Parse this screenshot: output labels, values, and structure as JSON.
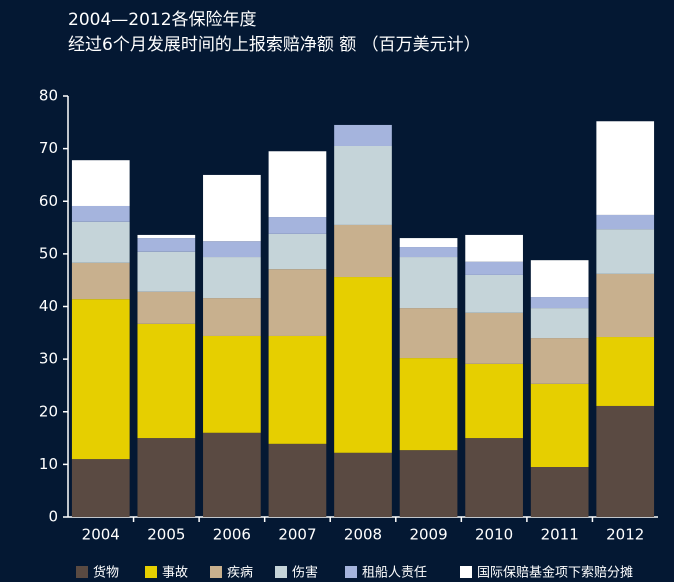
{
  "chart_data": {
    "type": "stacked_bar",
    "title": "2004—2012各保险年度",
    "subtitle": "经过6个月发展时间的上报索赔净额 额 （百万美元计）",
    "categories": [
      "2004",
      "2005",
      "2006",
      "2007",
      "2008",
      "2009",
      "2010",
      "2011",
      "2012"
    ],
    "series": [
      {
        "name": "货物",
        "color": "#5a4a42",
        "values": [
          11,
          15,
          16,
          13.9,
          12.2,
          12.7,
          15,
          9.5,
          21.1
        ]
      },
      {
        "name": "事故",
        "color": "#e6cf00",
        "values": [
          30.4,
          21.7,
          18.4,
          20.5,
          33.4,
          17.5,
          14.1,
          15.8,
          13.1
        ]
      },
      {
        "name": "疾病",
        "color": "#c8b08e",
        "values": [
          6.9,
          6.1,
          7.2,
          12.7,
          9.9,
          9.5,
          9.7,
          8.7,
          12
        ]
      },
      {
        "name": "伤害",
        "color": "#c5d4d9",
        "values": [
          7.8,
          7.6,
          7.8,
          6.7,
          15,
          9.7,
          7.2,
          5.7,
          8.5
        ]
      },
      {
        "name": "租船人责任",
        "color": "#a5b4dd",
        "values": [
          3,
          2.6,
          3,
          3.2,
          4,
          1.9,
          2.5,
          2.1,
          2.7
        ]
      },
      {
        "name": "国际保赔基金项下索赔分摊",
        "color": "#ffffff",
        "values": [
          8.7,
          0.6,
          12.6,
          12.5,
          0,
          1.7,
          5.1,
          7,
          17.8
        ]
      }
    ],
    "ylim": [
      0,
      80
    ],
    "yticks": [
      0,
      10,
      20,
      30,
      40,
      50,
      60,
      70,
      80
    ],
    "legend": "bottom"
  }
}
